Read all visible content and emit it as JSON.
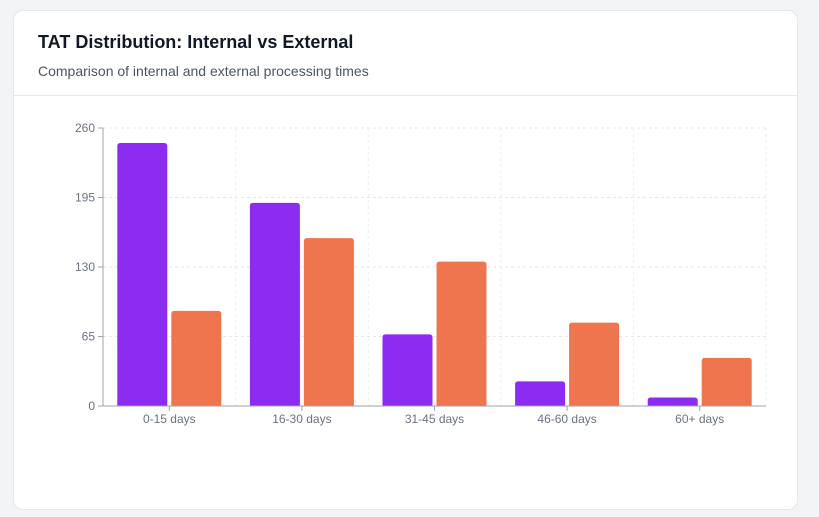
{
  "header": {
    "title": "TAT Distribution: Internal vs External",
    "subtitle": "Comparison of internal and external processing times"
  },
  "chart_data": {
    "type": "bar",
    "categories": [
      "0-15 days",
      "16-30 days",
      "31-45 days",
      "46-60 days",
      "60+ days"
    ],
    "series": [
      {
        "color": "#8b2cf0",
        "values": [
          246,
          190,
          67,
          23,
          8
        ]
      },
      {
        "color": "#ee754d",
        "values": [
          89,
          157,
          135,
          78,
          45
        ]
      }
    ],
    "yticks": [
      0,
      65,
      130,
      195,
      260
    ],
    "ylim": [
      0,
      260
    ],
    "grid": true,
    "legend": "none"
  }
}
